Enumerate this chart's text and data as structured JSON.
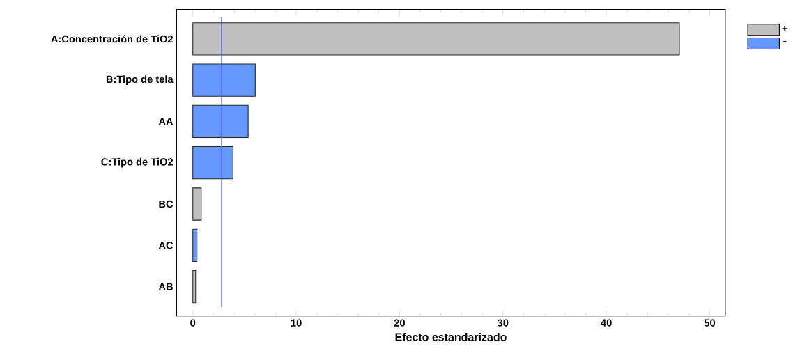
{
  "chart_data": {
    "type": "bar",
    "orientation": "horizontal",
    "stacked": true,
    "xlabel": "Efecto estandarizado",
    "categories": [
      "A:Concentración de TiO2",
      "B:Tipo de tela",
      "AA",
      "C:Tipo de TiO2",
      "BC",
      "AC",
      "AB"
    ],
    "series": [
      {
        "name": "+",
        "color": "#c0c0c0",
        "values": [
          47.07,
          null,
          null,
          null,
          0.81,
          null,
          0.27
        ]
      },
      {
        "name": "-",
        "color": "#6699ff",
        "values": [
          null,
          6.04,
          5.35,
          3.89,
          null,
          0.4,
          null
        ]
      }
    ],
    "xlim": [
      -1.58,
      51.5
    ],
    "xticks": [
      0,
      10,
      20,
      30,
      40,
      50
    ],
    "ref_lines": [
      {
        "axis": "x",
        "value": 2.78,
        "color": "#4466ee"
      }
    ],
    "legend": "right",
    "grid": false
  }
}
